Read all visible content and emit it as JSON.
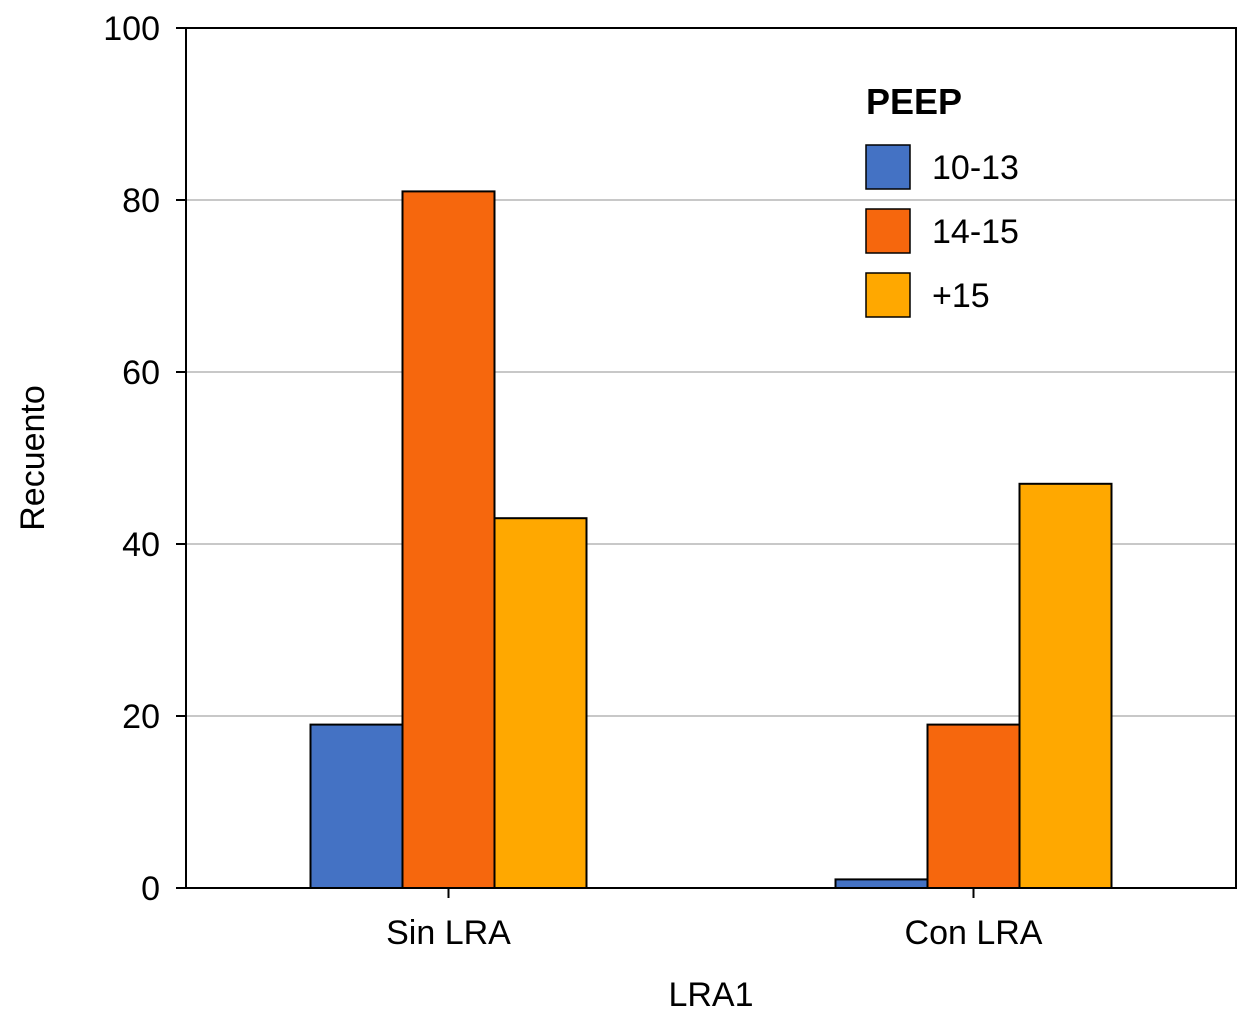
{
  "chart_data": {
    "type": "bar",
    "title": "",
    "xlabel": "LRA1",
    "ylabel": "Recuento",
    "categories": [
      "Sin LRA",
      "Con LRA"
    ],
    "ylim": [
      0,
      100
    ],
    "yticks": [
      0,
      20,
      40,
      60,
      80,
      100
    ],
    "grid": true,
    "legend": {
      "title": "PEEP",
      "position": "top-right"
    },
    "series": [
      {
        "name": "10-13",
        "color": "#4472C4",
        "values": [
          19,
          1
        ]
      },
      {
        "name": "14-15",
        "color": "#F6670D",
        "values": [
          81,
          19
        ]
      },
      {
        "name": "+15",
        "color": "#FFA800",
        "values": [
          43,
          47
        ]
      }
    ]
  }
}
